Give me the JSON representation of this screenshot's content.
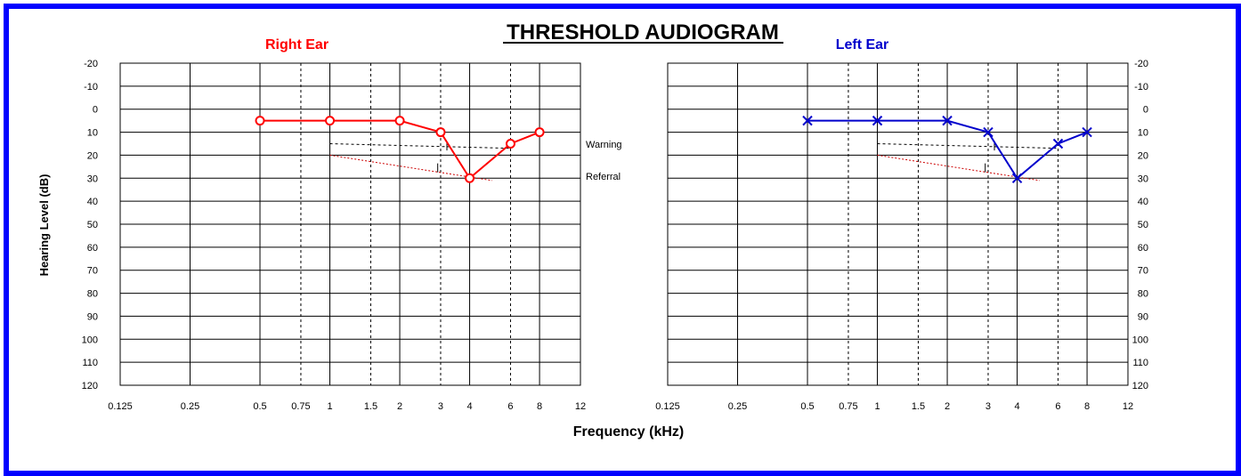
{
  "title": "THRESHOLD AUDIOGRAM",
  "xlabel": "Frequency (kHz)",
  "ylabel": "Hearing Level (dB)",
  "colors": {
    "frame": "#0000ff",
    "right": "#ff0000",
    "left": "#0000cc",
    "referral": "#cc0000"
  },
  "chart_data": [
    {
      "type": "line",
      "title": "Right Ear",
      "xlabel": "Frequency (kHz)",
      "ylabel": "Hearing Level (dB)",
      "x_ticks": [
        "0.125",
        "0.25",
        "0.5",
        "0.75",
        "1",
        "1.5",
        "2",
        "3",
        "4",
        "6",
        "8",
        "12"
      ],
      "y_ticks": [
        -20,
        -10,
        0,
        10,
        20,
        30,
        40,
        50,
        60,
        70,
        80,
        90,
        100,
        110,
        120
      ],
      "ylim": [
        -20,
        120
      ],
      "y_inverted": true,
      "x_scale": "log2",
      "marker": "circle",
      "series": [
        {
          "x": [
            0.5,
            1,
            2,
            3,
            4,
            6,
            8
          ],
          "values": [
            5,
            5,
            5,
            10,
            30,
            15,
            10
          ]
        }
      ],
      "reference_lines": [
        {
          "name": "Warning",
          "x": [
            1,
            6
          ],
          "values": [
            15,
            17
          ]
        },
        {
          "name": "Referral",
          "x": [
            1,
            5
          ],
          "values": [
            20,
            31
          ]
        }
      ]
    },
    {
      "type": "line",
      "title": "Left Ear",
      "xlabel": "Frequency (kHz)",
      "ylabel": "Hearing Level (dB)",
      "x_ticks": [
        "0.125",
        "0.25",
        "0.5",
        "0.75",
        "1",
        "1.5",
        "2",
        "3",
        "4",
        "6",
        "8",
        "12"
      ],
      "y_ticks": [
        -20,
        -10,
        0,
        10,
        20,
        30,
        40,
        50,
        60,
        70,
        80,
        90,
        100,
        110,
        120
      ],
      "ylim": [
        -20,
        120
      ],
      "y_inverted": true,
      "x_scale": "log2",
      "marker": "x",
      "series": [
        {
          "x": [
            0.5,
            1,
            2,
            3,
            4,
            6,
            8
          ],
          "values": [
            5,
            5,
            5,
            10,
            30,
            15,
            10
          ]
        }
      ],
      "reference_lines": [
        {
          "x": [
            1,
            6
          ],
          "values": [
            15,
            17
          ]
        },
        {
          "x": [
            1,
            5
          ],
          "values": [
            20,
            31
          ]
        }
      ]
    }
  ]
}
